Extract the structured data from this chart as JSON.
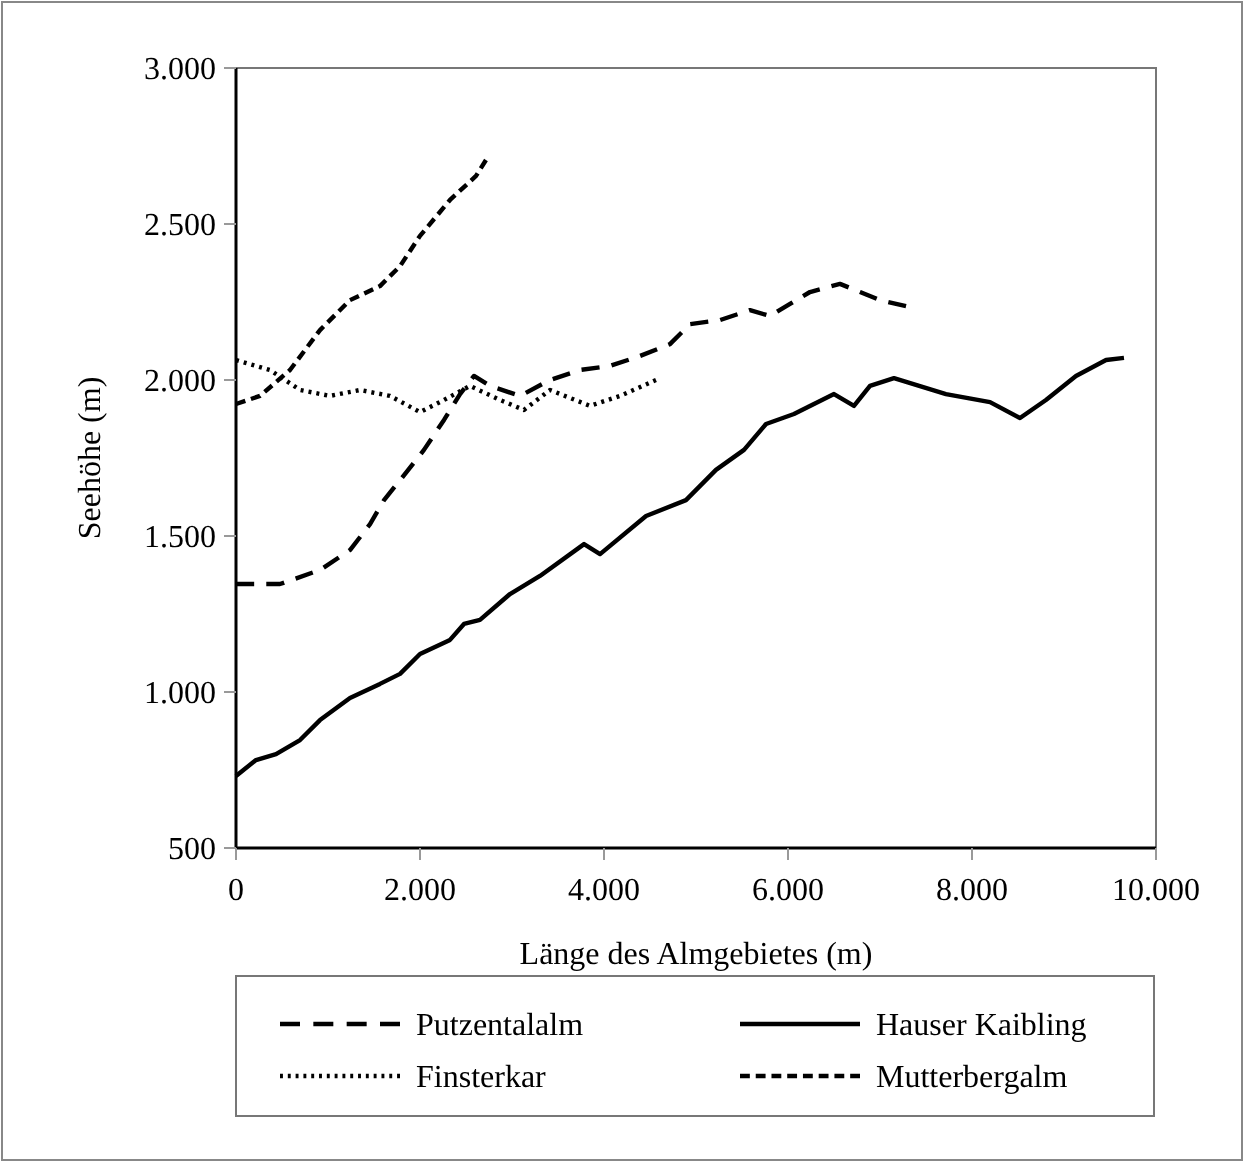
{
  "chart_data": {
    "type": "line",
    "xlabel": "Länge des Almgebietes (m)",
    "ylabel": "Seehöhe (m)",
    "xlim": [
      0,
      10000
    ],
    "xticks": [
      {
        "value": 0,
        "label": "0"
      },
      {
        "value": 2000,
        "label": "2.000"
      },
      {
        "value": 4000,
        "label": "4.000"
      },
      {
        "value": 6000,
        "label": "6.000"
      },
      {
        "value": 8000,
        "label": "8.000"
      },
      {
        "value": 10000,
        "label": "10.000"
      }
    ],
    "ylim": [
      500,
      3000
    ],
    "yticks": [
      {
        "value": 500,
        "label": "500"
      },
      {
        "value": 1000,
        "label": "1.000"
      },
      {
        "value": 1500,
        "label": "1.500"
      },
      {
        "value": 2000,
        "label": "2.000"
      },
      {
        "value": 2500,
        "label": "2.500"
      },
      {
        "value": 3000,
        "label": "3.000"
      }
    ],
    "grid": false,
    "legend": "bottom",
    "marker": "none",
    "series": [
      {
        "name": "Putzentalalm",
        "color": "#000000",
        "line_style": "dashed",
        "x": [
          0,
          478,
          913,
          1239,
          1457,
          1609,
          1783,
          2043,
          2261,
          2435,
          2587,
          2761,
          3087,
          3413,
          3739,
          4065,
          4391,
          4717,
          4935,
          5261,
          5587,
          5804,
          6022,
          6239,
          6565,
          6783,
          7000,
          7283
        ],
        "values": [
          1346,
          1346,
          1391,
          1455,
          1538,
          1615,
          1679,
          1776,
          1872,
          1955,
          2013,
          1981,
          1949,
          2000,
          2032,
          2045,
          2077,
          2115,
          2179,
          2192,
          2224,
          2205,
          2244,
          2282,
          2308,
          2282,
          2256,
          2237
        ]
      },
      {
        "name": "Hauser Kaibling",
        "color": "#000000",
        "line_style": "solid",
        "x": [
          0,
          217,
          435,
          696,
          913,
          1239,
          1565,
          1783,
          2000,
          2326,
          2478,
          2652,
          2978,
          3304,
          3783,
          3957,
          4457,
          4891,
          5217,
          5522,
          5761,
          6065,
          6500,
          6717,
          6891,
          7152,
          7717,
          8196,
          8522,
          8804,
          9130,
          9457,
          9652
        ],
        "values": [
          731,
          782,
          801,
          846,
          910,
          981,
          1026,
          1058,
          1122,
          1167,
          1218,
          1231,
          1314,
          1372,
          1474,
          1442,
          1564,
          1615,
          1712,
          1776,
          1859,
          1891,
          1955,
          1917,
          1981,
          2006,
          1955,
          1929,
          1878,
          1936,
          2013,
          2064,
          2071
        ]
      },
      {
        "name": "Finsterkar",
        "color": "#000000",
        "line_style": "dotted",
        "x": [
          0,
          370,
          696,
          1022,
          1348,
          1674,
          2000,
          2261,
          2543,
          2870,
          3130,
          3413,
          3848,
          4174,
          4565
        ],
        "values": [
          2064,
          2032,
          1968,
          1949,
          1968,
          1949,
          1897,
          1936,
          1981,
          1936,
          1904,
          1968,
          1917,
          1949,
          2000
        ]
      },
      {
        "name": "Mutterbergalm",
        "color": "#000000",
        "line_style": "dashed",
        "x": [
          0,
          261,
          587,
          913,
          1239,
          1565,
          1783,
          2000,
          2326,
          2609,
          2717
        ],
        "values": [
          1923,
          1949,
          2032,
          2160,
          2256,
          2301,
          2365,
          2462,
          2577,
          2654,
          2705
        ]
      }
    ]
  }
}
